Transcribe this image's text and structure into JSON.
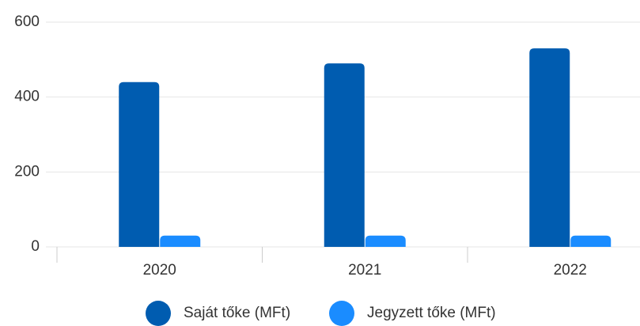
{
  "chart_data": {
    "type": "bar",
    "categories": [
      "2020",
      "2021",
      "2022"
    ],
    "series": [
      {
        "name": "Saját tőke (MFt)",
        "color": "#005cb0",
        "values": [
          440,
          490,
          530
        ]
      },
      {
        "name": "Jegyzett tőke (MFt)",
        "color": "#1a8cff",
        "values": [
          30,
          30,
          30
        ]
      }
    ],
    "ylim": [
      0,
      600
    ],
    "yticks": [
      0,
      200,
      400,
      600
    ],
    "grid": true,
    "legend": "bottom"
  }
}
